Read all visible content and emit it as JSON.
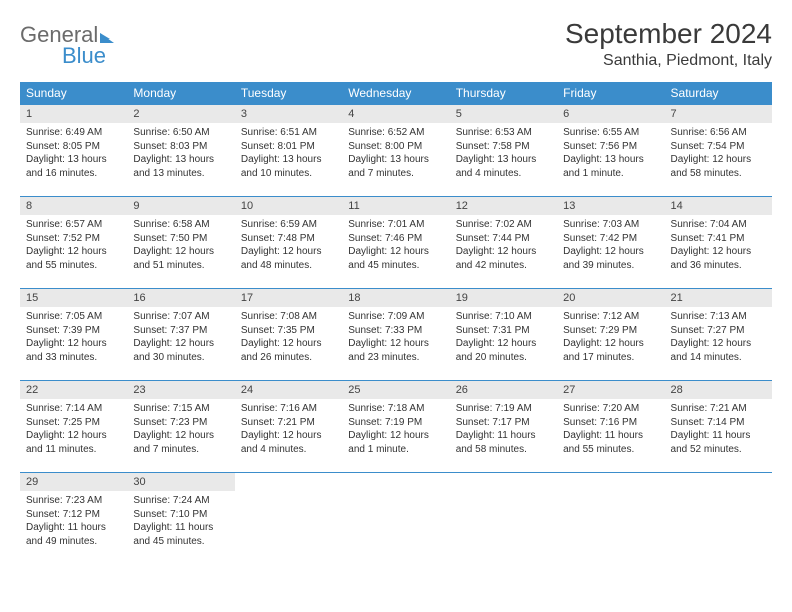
{
  "logo": {
    "line1": "General",
    "line2": "Blue"
  },
  "title": "September 2024",
  "location": "Santhia, Piedmont, Italy",
  "colors": {
    "header_bg": "#3b8dcb",
    "daynum_bg": "#e9e9e9",
    "border": "#3b8dcb",
    "text": "#333333"
  },
  "weekdays": [
    "Sunday",
    "Monday",
    "Tuesday",
    "Wednesday",
    "Thursday",
    "Friday",
    "Saturday"
  ],
  "days": [
    {
      "n": 1,
      "sr": "6:49 AM",
      "ss": "8:05 PM",
      "dl": "13 hours and 16 minutes."
    },
    {
      "n": 2,
      "sr": "6:50 AM",
      "ss": "8:03 PM",
      "dl": "13 hours and 13 minutes."
    },
    {
      "n": 3,
      "sr": "6:51 AM",
      "ss": "8:01 PM",
      "dl": "13 hours and 10 minutes."
    },
    {
      "n": 4,
      "sr": "6:52 AM",
      "ss": "8:00 PM",
      "dl": "13 hours and 7 minutes."
    },
    {
      "n": 5,
      "sr": "6:53 AM",
      "ss": "7:58 PM",
      "dl": "13 hours and 4 minutes."
    },
    {
      "n": 6,
      "sr": "6:55 AM",
      "ss": "7:56 PM",
      "dl": "13 hours and 1 minute."
    },
    {
      "n": 7,
      "sr": "6:56 AM",
      "ss": "7:54 PM",
      "dl": "12 hours and 58 minutes."
    },
    {
      "n": 8,
      "sr": "6:57 AM",
      "ss": "7:52 PM",
      "dl": "12 hours and 55 minutes."
    },
    {
      "n": 9,
      "sr": "6:58 AM",
      "ss": "7:50 PM",
      "dl": "12 hours and 51 minutes."
    },
    {
      "n": 10,
      "sr": "6:59 AM",
      "ss": "7:48 PM",
      "dl": "12 hours and 48 minutes."
    },
    {
      "n": 11,
      "sr": "7:01 AM",
      "ss": "7:46 PM",
      "dl": "12 hours and 45 minutes."
    },
    {
      "n": 12,
      "sr": "7:02 AM",
      "ss": "7:44 PM",
      "dl": "12 hours and 42 minutes."
    },
    {
      "n": 13,
      "sr": "7:03 AM",
      "ss": "7:42 PM",
      "dl": "12 hours and 39 minutes."
    },
    {
      "n": 14,
      "sr": "7:04 AM",
      "ss": "7:41 PM",
      "dl": "12 hours and 36 minutes."
    },
    {
      "n": 15,
      "sr": "7:05 AM",
      "ss": "7:39 PM",
      "dl": "12 hours and 33 minutes."
    },
    {
      "n": 16,
      "sr": "7:07 AM",
      "ss": "7:37 PM",
      "dl": "12 hours and 30 minutes."
    },
    {
      "n": 17,
      "sr": "7:08 AM",
      "ss": "7:35 PM",
      "dl": "12 hours and 26 minutes."
    },
    {
      "n": 18,
      "sr": "7:09 AM",
      "ss": "7:33 PM",
      "dl": "12 hours and 23 minutes."
    },
    {
      "n": 19,
      "sr": "7:10 AM",
      "ss": "7:31 PM",
      "dl": "12 hours and 20 minutes."
    },
    {
      "n": 20,
      "sr": "7:12 AM",
      "ss": "7:29 PM",
      "dl": "12 hours and 17 minutes."
    },
    {
      "n": 21,
      "sr": "7:13 AM",
      "ss": "7:27 PM",
      "dl": "12 hours and 14 minutes."
    },
    {
      "n": 22,
      "sr": "7:14 AM",
      "ss": "7:25 PM",
      "dl": "12 hours and 11 minutes."
    },
    {
      "n": 23,
      "sr": "7:15 AM",
      "ss": "7:23 PM",
      "dl": "12 hours and 7 minutes."
    },
    {
      "n": 24,
      "sr": "7:16 AM",
      "ss": "7:21 PM",
      "dl": "12 hours and 4 minutes."
    },
    {
      "n": 25,
      "sr": "7:18 AM",
      "ss": "7:19 PM",
      "dl": "12 hours and 1 minute."
    },
    {
      "n": 26,
      "sr": "7:19 AM",
      "ss": "7:17 PM",
      "dl": "11 hours and 58 minutes."
    },
    {
      "n": 27,
      "sr": "7:20 AM",
      "ss": "7:16 PM",
      "dl": "11 hours and 55 minutes."
    },
    {
      "n": 28,
      "sr": "7:21 AM",
      "ss": "7:14 PM",
      "dl": "11 hours and 52 minutes."
    },
    {
      "n": 29,
      "sr": "7:23 AM",
      "ss": "7:12 PM",
      "dl": "11 hours and 49 minutes."
    },
    {
      "n": 30,
      "sr": "7:24 AM",
      "ss": "7:10 PM",
      "dl": "11 hours and 45 minutes."
    }
  ],
  "labels": {
    "sunrise": "Sunrise:",
    "sunset": "Sunset:",
    "daylight": "Daylight:"
  }
}
